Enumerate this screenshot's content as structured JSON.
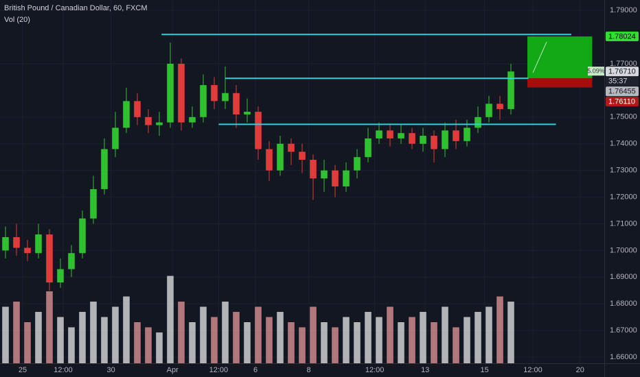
{
  "chart_data": {
    "type": "candlestick",
    "title": "British Pound / Canadian Dollar, 60, FXCM",
    "indicator": "Vol (20)",
    "xlim": [
      0,
      55
    ],
    "xticks": [
      {
        "value": 2.06,
        "label": "25"
      },
      {
        "value": 5.75,
        "label": "12:00"
      },
      {
        "value": 10.1,
        "label": "30"
      },
      {
        "value": 15.7,
        "label": "Apr"
      },
      {
        "value": 19.9,
        "label": "12:00"
      },
      {
        "value": 23.25,
        "label": "6"
      },
      {
        "value": 28.1,
        "label": "8"
      },
      {
        "value": 34.1,
        "label": "12:00"
      },
      {
        "value": 38.7,
        "label": "13"
      },
      {
        "value": 44.1,
        "label": "15"
      },
      {
        "value": 48.5,
        "label": "12:00"
      },
      {
        "value": 52.8,
        "label": "20"
      }
    ],
    "ylim": [
      1.6577,
      1.7939
    ],
    "yticks": [
      {
        "value": 1.79,
        "label": "1.79000"
      },
      {
        "value": 1.77,
        "label": "1.77000"
      },
      {
        "value": 1.75,
        "label": "1.75000"
      },
      {
        "value": 1.74,
        "label": "1.74000"
      },
      {
        "value": 1.73,
        "label": "1.73000"
      },
      {
        "value": 1.72,
        "label": "1.72000"
      },
      {
        "value": 1.71,
        "label": "1.71000"
      },
      {
        "value": 1.7,
        "label": "1.70000"
      },
      {
        "value": 1.69,
        "label": "1.69000"
      },
      {
        "value": 1.68,
        "label": "1.68000"
      },
      {
        "value": 1.67,
        "label": "1.67000"
      },
      {
        "value": 1.66,
        "label": "1.66000"
      }
    ],
    "grid": true,
    "up_color": "#2fc12f",
    "down_color": "#e23b3b",
    "open": [
      1.7,
      1.705,
      1.701,
      1.699,
      1.706,
      1.688,
      1.693,
      1.699,
      1.712,
      1.723,
      1.738,
      1.746,
      1.756,
      1.75,
      1.747,
      1.748,
      1.77,
      1.748,
      1.75,
      1.762,
      1.756,
      1.759,
      1.751,
      1.752,
      1.738,
      1.73,
      1.74,
      1.737,
      1.734,
      1.727,
      1.73,
      1.724,
      1.73,
      1.735,
      1.742,
      1.745,
      1.742,
      1.744,
      1.74,
      1.743,
      1.738,
      1.745,
      1.741,
      1.746,
      1.75,
      1.755,
      1.753
    ],
    "high": [
      1.709,
      1.71,
      1.704,
      1.71,
      1.708,
      1.697,
      1.702,
      1.715,
      1.728,
      1.742,
      1.752,
      1.761,
      1.759,
      1.753,
      1.752,
      1.778,
      1.772,
      1.754,
      1.766,
      1.765,
      1.769,
      1.762,
      1.757,
      1.754,
      1.741,
      1.743,
      1.742,
      1.74,
      1.736,
      1.734,
      1.732,
      1.733,
      1.738,
      1.746,
      1.748,
      1.747,
      1.747,
      1.746,
      1.746,
      1.745,
      1.748,
      1.749,
      1.749,
      1.754,
      1.758,
      1.758,
      1.77
    ],
    "low": [
      1.697,
      1.698,
      1.696,
      1.697,
      1.685,
      1.686,
      1.69,
      1.697,
      1.71,
      1.721,
      1.735,
      1.744,
      1.747,
      1.744,
      1.743,
      1.746,
      1.745,
      1.746,
      1.748,
      1.753,
      1.753,
      1.746,
      1.748,
      1.734,
      1.726,
      1.728,
      1.732,
      1.729,
      1.719,
      1.722,
      1.72,
      1.722,
      1.727,
      1.733,
      1.74,
      1.739,
      1.74,
      1.738,
      1.737,
      1.733,
      1.735,
      1.738,
      1.739,
      1.744,
      1.748,
      1.749,
      1.751
    ],
    "close": [
      1.705,
      1.701,
      1.699,
      1.706,
      1.688,
      1.693,
      1.699,
      1.712,
      1.723,
      1.738,
      1.746,
      1.756,
      1.75,
      1.747,
      1.748,
      1.77,
      1.748,
      1.75,
      1.762,
      1.756,
      1.759,
      1.751,
      1.752,
      1.738,
      1.73,
      1.74,
      1.737,
      1.734,
      1.727,
      1.73,
      1.724,
      1.73,
      1.735,
      1.742,
      1.745,
      1.742,
      1.744,
      1.74,
      1.743,
      1.738,
      1.745,
      1.741,
      1.746,
      1.75,
      1.755,
      1.753,
      1.7671
    ],
    "volume": {
      "ylim": [
        0,
        100
      ],
      "up_color": "#e8e8e8",
      "down_color": "#e79a9a",
      "values": [
        55,
        60,
        40,
        50,
        70,
        45,
        35,
        50,
        60,
        45,
        55,
        65,
        40,
        35,
        30,
        85,
        60,
        40,
        55,
        45,
        60,
        50,
        40,
        55,
        45,
        50,
        40,
        35,
        55,
        40,
        35,
        45,
        40,
        50,
        45,
        55,
        40,
        45,
        50,
        40,
        55,
        35,
        45,
        50,
        55,
        65,
        60
      ]
    },
    "levels": [
      {
        "price": 1.781,
        "x": [
          14.7,
          52
        ],
        "color": "#2ad4dc"
      },
      {
        "price": 1.76455,
        "x": [
          20.5,
          48.1
        ],
        "color": "#2ad4dc"
      },
      {
        "price": 1.7473,
        "x": [
          19.9,
          50.6
        ],
        "color": "#2ad4dc"
      }
    ],
    "position": {
      "target": 1.78024,
      "entry": 1.76455,
      "stop": 1.7611,
      "x": [
        48,
        53.9
      ],
      "target_color": "#14b814",
      "stop_color": "#a80d0d",
      "percent": "5.09%"
    },
    "price_labels": [
      {
        "value": 1.78024,
        "label": "1.78024",
        "bg": "#33dd33",
        "fg": "#000000"
      },
      {
        "value": 1.7671,
        "label": "1.76710",
        "bg": "#d6d8dd",
        "fg": "#131722"
      },
      {
        "value": 1.76455,
        "label": "1.76455",
        "bg": "#b7b9bf",
        "fg": "#131722"
      },
      {
        "value": 1.7611,
        "label": "1.76110",
        "bg": "#b11a1a",
        "fg": "#ffffff"
      }
    ],
    "countdown": "35:37"
  }
}
